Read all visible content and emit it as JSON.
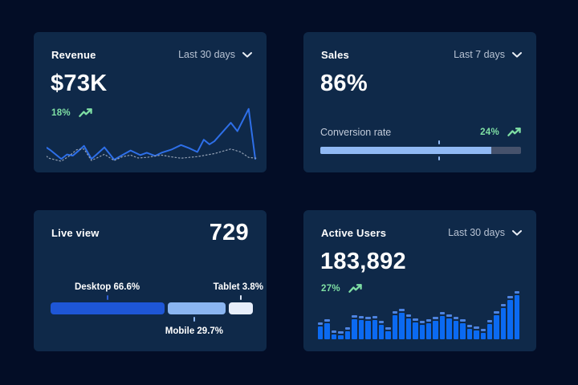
{
  "page": {
    "bg_color": "#030d26",
    "card_color": "#0f2949",
    "accent_blue": "#2e6fe8",
    "light_blue": "#90b9f4",
    "positive_green": "#7fdfa4"
  },
  "cards": {
    "revenue": {
      "title": "Revenue",
      "range_label": "Last 30 days",
      "value": "$73K",
      "delta": "18%",
      "delta_icon": "trending-up-icon",
      "range_icon": "chevron-down-icon"
    },
    "sales": {
      "title": "Sales",
      "range_label": "Last 7 days",
      "value": "86%",
      "delta": "24%",
      "delta_icon": "trending-up-icon",
      "range_icon": "chevron-down-icon"
    },
    "live_view": {
      "title": "Live view",
      "value": "729"
    },
    "active_users": {
      "title": "Active Users",
      "range_label": "Last 30 days",
      "value": "183,892",
      "delta": "27%",
      "delta_icon": "trending-up-icon",
      "range_icon": "chevron-down-icon"
    }
  },
  "chart_data": [
    {
      "id": "revenue-trend",
      "type": "line",
      "title": "Revenue – Last 30 days",
      "grid": false,
      "legend": "none",
      "x_range": [
        0,
        100
      ],
      "y_range": [
        0,
        50
      ],
      "series": [
        {
          "name": "current period",
          "style": "solid",
          "color": "#2e6fe8",
          "points": [
            [
              0,
              37.5
            ],
            [
              2,
              40
            ],
            [
              6.9,
              47.3
            ],
            [
              9.6,
              43.5
            ],
            [
              12.3,
              44.5
            ],
            [
              14.9,
              40.5
            ],
            [
              17.6,
              36
            ],
            [
              21.1,
              47.3
            ],
            [
              23.5,
              43.5
            ],
            [
              27.2,
              37.3
            ],
            [
              31.8,
              48
            ],
            [
              34.9,
              44.7
            ],
            [
              39.5,
              40
            ],
            [
              44.1,
              44
            ],
            [
              47.1,
              42
            ],
            [
              51,
              44.7
            ],
            [
              54,
              42
            ],
            [
              58.6,
              39.3
            ],
            [
              63.2,
              35.3
            ],
            [
              67,
              38
            ],
            [
              70.9,
              41.3
            ],
            [
              73.9,
              30.7
            ],
            [
              76.6,
              34.7
            ],
            [
              78.9,
              32
            ],
            [
              86.6,
              16
            ],
            [
              89.7,
              23.3
            ],
            [
              95,
              4
            ],
            [
              98.1,
              47.3
            ]
          ]
        },
        {
          "name": "previous period",
          "style": "dashed",
          "color": "#93a0b4",
          "points": [
            [
              0,
              45
            ],
            [
              1.1,
              46.7
            ],
            [
              6.9,
              49.3
            ],
            [
              10.5,
              45
            ],
            [
              14.2,
              39.3
            ],
            [
              17.6,
              38.7
            ],
            [
              21.1,
              48.7
            ],
            [
              27.2,
              43.3
            ],
            [
              31.8,
              48.7
            ],
            [
              35.5,
              45.5
            ],
            [
              39.5,
              44
            ],
            [
              43,
              46.5
            ],
            [
              47.1,
              46
            ],
            [
              54,
              44
            ],
            [
              58.5,
              45.5
            ],
            [
              63.2,
              46.7
            ],
            [
              70.9,
              45.3
            ],
            [
              78.9,
              42.7
            ],
            [
              86.6,
              38.7
            ],
            [
              91.2,
              41.3
            ],
            [
              95,
              46
            ],
            [
              98.5,
              46.7
            ]
          ]
        }
      ]
    },
    {
      "id": "conversion-progress",
      "type": "bar",
      "label": "Conversion rate",
      "fill_pct": 85,
      "marker_pct": 59,
      "track_color": "#46526c",
      "fill_color": "#90b9f4",
      "marker_color": "#90b9f4"
    },
    {
      "id": "device-split",
      "type": "bar",
      "orientation": "horizontal-stacked",
      "categories": [
        "Desktop",
        "Mobile",
        "Tablet"
      ],
      "values": [
        66.6,
        29.7,
        3.8
      ],
      "segments": [
        {
          "label_text": "Desktop 66.6%",
          "value": 66.6,
          "color": "#1e56d6",
          "display_pct": 56.3
        },
        {
          "label_text": "Mobile 29.7%",
          "value": 29.7,
          "color": "#8ab5f1",
          "display_pct": 28.6
        },
        {
          "label_text": "Tablet 3.8%",
          "value": 3.8,
          "color": "#e7eefa",
          "display_pct": 11.9
        }
      ]
    },
    {
      "id": "active-users-bars",
      "type": "bar",
      "title": "Active Users – Last 30 days",
      "max": 100,
      "bar_color": "#0b6af2",
      "cap_color": "#4d83e0",
      "values": [
        35,
        42,
        18,
        16,
        25,
        50,
        48,
        46,
        48,
        38,
        25,
        58,
        64,
        52,
        44,
        38,
        42,
        46,
        56,
        52,
        46,
        42,
        30,
        26,
        22,
        40,
        58,
        74,
        90,
        100
      ]
    }
  ]
}
